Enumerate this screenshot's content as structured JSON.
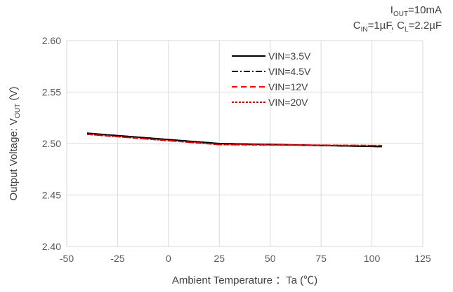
{
  "conditions": {
    "line1": {
      "symbol": "I",
      "sub": "OUT",
      "rest": "=10mA"
    },
    "line2": {
      "cin_symbol": "C",
      "cin_sub": "IN",
      "cin_rest": "=1µF, ",
      "cl_symbol": "C",
      "cl_sub": "L",
      "cl_rest": "=2.2µF"
    }
  },
  "chart_data": {
    "type": "line",
    "xlabel": "Ambient Temperature ：Ta (℃)",
    "ylabel_parts": [
      "Output Voltage: V",
      "OUT",
      " (V)"
    ],
    "xlim": [
      -50,
      125
    ],
    "ylim": [
      2.4,
      2.6
    ],
    "x_ticks": [
      -50,
      -25,
      0,
      25,
      50,
      75,
      100,
      125
    ],
    "y_ticks": [
      "2.40",
      "2.45",
      "2.50",
      "2.55",
      "2.60"
    ],
    "grid": true,
    "legend_position": "top-center",
    "x": [
      -40,
      25,
      105
    ],
    "series": [
      {
        "name": "VIN=3.5V",
        "values": [
          2.51,
          2.5,
          2.497
        ],
        "color": "#000000",
        "dash": "solid"
      },
      {
        "name": "VIN=4.5V",
        "values": [
          2.51,
          2.5,
          2.497
        ],
        "color": "#000000",
        "dash": "dashdot"
      },
      {
        "name": "VIN=12V",
        "values": [
          2.509,
          2.499,
          2.498
        ],
        "color": "#ff0000",
        "dash": "dashed"
      },
      {
        "name": "VIN=20V",
        "values": [
          2.509,
          2.499,
          2.498
        ],
        "color": "#c00000",
        "dash": "dotted"
      }
    ]
  }
}
